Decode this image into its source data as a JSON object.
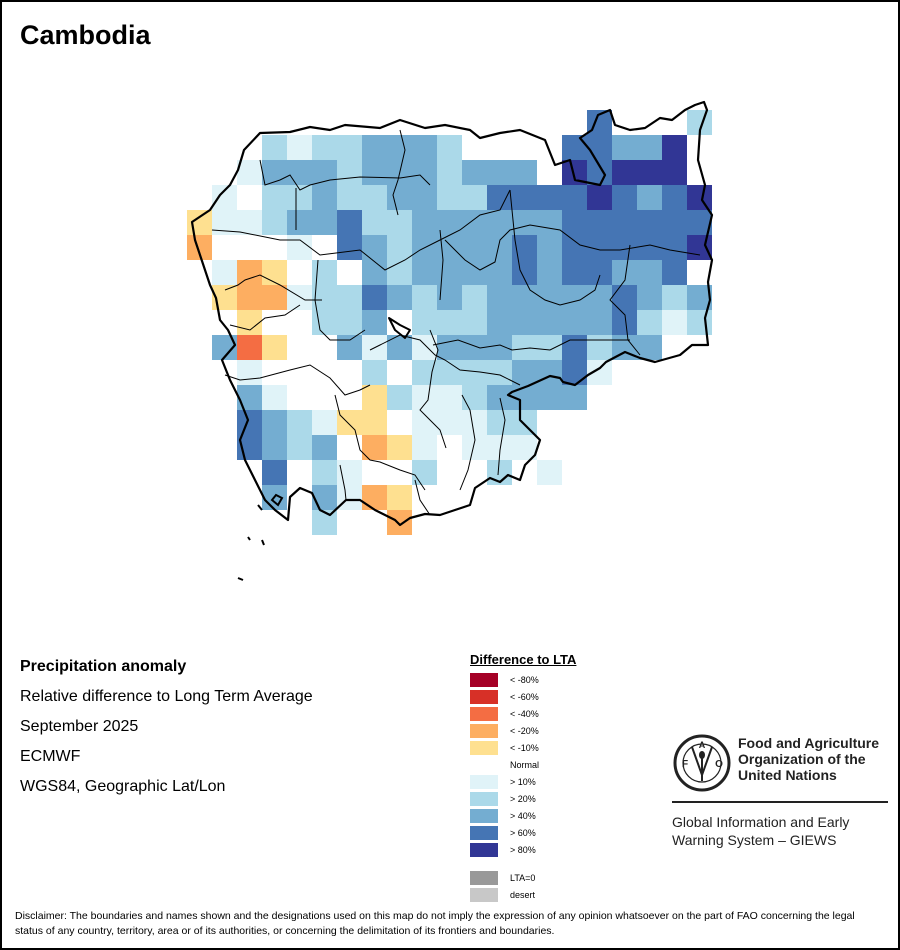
{
  "title": "Cambodia",
  "info": {
    "heading": "Precipitation anomaly",
    "line1": "Relative difference to Long Term Average",
    "line2": "September 2025",
    "line3": "ECMWF",
    "line4": "WGS84, Geographic Lat/Lon"
  },
  "legend": {
    "title": "Difference to LTA",
    "items": [
      {
        "code": "m80",
        "label": "< -80%",
        "color": "#a50026"
      },
      {
        "code": "m60",
        "label": "< -60%",
        "color": "#d73027"
      },
      {
        "code": "m40",
        "label": "< -40%",
        "color": "#f46d43"
      },
      {
        "code": "m20",
        "label": "< -20%",
        "color": "#fdae61"
      },
      {
        "code": "m10",
        "label": "< -10%",
        "color": "#fee090"
      },
      {
        "code": "W",
        "label": "Normal",
        "color": "#ffffff"
      },
      {
        "code": "p10",
        "label": "> 10%",
        "color": "#e0f3f8"
      },
      {
        "code": "p20",
        "label": "> 20%",
        "color": "#abd9e9"
      },
      {
        "code": "p40",
        "label": "> 40%",
        "color": "#74add1"
      },
      {
        "code": "p60",
        "label": "> 60%",
        "color": "#4575b4"
      },
      {
        "code": "p80",
        "label": "> 80%",
        "color": "#313695"
      }
    ],
    "extra": [
      {
        "code": "lta0",
        "label": "LTA=0",
        "color": "#999999"
      },
      {
        "code": "desert",
        "label": "desert",
        "color": "#c8c8c8"
      }
    ]
  },
  "logo": {
    "letters": "FAO",
    "motto": "FIAT PANIS",
    "org_line1": "Food and Agriculture",
    "org_line2": "Organization of the",
    "org_line3": "United Nations",
    "giews_line1": "Global Information and Early",
    "giews_line2": "Warning System – GIEWS"
  },
  "disclaimer": "Disclaimer: The boundaries and names shown and the designations used on this map do not imply the expression of any opinion whatsoever on the part of FAO concerning the legal status of any country, territory, area or of its authorities, or concerning the delimitation of its frontiers and boundaries.",
  "grid": [
    [
      "",
      "",
      "",
      "",
      "",
      "",
      "",
      "",
      "",
      "",
      "",
      "",
      "",
      "",
      "",
      "",
      "p60",
      "",
      "",
      "",
      "p20"
    ],
    [
      "",
      "",
      "",
      "p20",
      "p10",
      "p20",
      "p20",
      "p40",
      "p40",
      "p40",
      "p20",
      "",
      "",
      "",
      "",
      "p60",
      "p60",
      "p40",
      "p40",
      "p80",
      ""
    ],
    [
      "",
      "",
      "p10",
      "p40",
      "p40",
      "p40",
      "p20",
      "p40",
      "p40",
      "p40",
      "p20",
      "p40",
      "p40",
      "p40",
      "",
      "p80",
      "p60",
      "p80",
      "p80",
      "p80",
      ""
    ],
    [
      "",
      "p10",
      "W",
      "p20",
      "p20",
      "p40",
      "p20",
      "p20",
      "p40",
      "p40",
      "p20",
      "p20",
      "p60",
      "p60",
      "p60",
      "p60",
      "p80",
      "p60",
      "p40",
      "p60",
      "p80"
    ],
    [
      "m10",
      "p10",
      "p10",
      "p20",
      "p40",
      "p40",
      "p60",
      "p20",
      "p20",
      "p40",
      "p40",
      "p40",
      "p40",
      "p40",
      "p40",
      "p60",
      "p60",
      "p60",
      "p60",
      "p60",
      "p60"
    ],
    [
      "m20",
      "W",
      "W",
      "W",
      "p10",
      "W",
      "p60",
      "p40",
      "p20",
      "p40",
      "p40",
      "p40",
      "p40",
      "p60",
      "p40",
      "p60",
      "p60",
      "p60",
      "p60",
      "p60",
      "p80"
    ],
    [
      "W",
      "p10",
      "m20",
      "m10",
      "W",
      "p20",
      "W",
      "p40",
      "p20",
      "p40",
      "p40",
      "p40",
      "p40",
      "p60",
      "p40",
      "p60",
      "p60",
      "p40",
      "p40",
      "p60",
      ""
    ],
    [
      "",
      "m10",
      "m20",
      "m20",
      "p10",
      "p20",
      "p20",
      "p60",
      "p40",
      "p20",
      "p40",
      "p20",
      "p40",
      "p40",
      "p40",
      "p40",
      "p40",
      "p60",
      "p40",
      "p20",
      "p40"
    ],
    [
      "",
      "W",
      "m10",
      "W",
      "W",
      "p20",
      "p20",
      "p40",
      "W",
      "p20",
      "p20",
      "p20",
      "p40",
      "p40",
      "p40",
      "p40",
      "p40",
      "p60",
      "p20",
      "p10",
      "p20"
    ],
    [
      "",
      "p40",
      "m40",
      "m10",
      "W",
      "W",
      "p40",
      "p10",
      "p40",
      "p10",
      "p40",
      "p40",
      "p40",
      "p20",
      "p20",
      "p60",
      "p20",
      "p40",
      "p40",
      "",
      ""
    ],
    [
      "",
      "",
      "p10",
      "W",
      "W",
      "W",
      "W",
      "p20",
      "W",
      "p20",
      "p20",
      "p20",
      "p20",
      "p40",
      "p40",
      "p60",
      "p10",
      "",
      "",
      "",
      ""
    ],
    [
      "",
      "",
      "p40",
      "p10",
      "W",
      "W",
      "W",
      "m10",
      "p20",
      "p10",
      "p10",
      "p20",
      "p40",
      "p40",
      "p40",
      "p40",
      "",
      "",
      "",
      "",
      ""
    ],
    [
      "",
      "",
      "p60",
      "p40",
      "p20",
      "p10",
      "m10",
      "m10",
      "W",
      "p10",
      "p10",
      "p10",
      "p20",
      "p20",
      "W",
      "",
      "",
      "",
      "",
      "",
      ""
    ],
    [
      "",
      "",
      "p60",
      "p40",
      "p20",
      "p40",
      "W",
      "m20",
      "m10",
      "p10",
      "W",
      "p10",
      "p10",
      "p10",
      "W",
      "",
      "",
      "",
      "",
      "",
      ""
    ],
    [
      "",
      "",
      "",
      "p60",
      "W",
      "p20",
      "p10",
      "W",
      "W",
      "p20",
      "W",
      "W",
      "p20",
      "W",
      "p10",
      "",
      "",
      "",
      "",
      "",
      ""
    ],
    [
      "",
      "",
      "",
      "p40",
      "",
      "p40",
      "p10",
      "m20",
      "m10",
      "",
      "",
      "",
      "",
      "",
      "",
      "",
      "",
      "",
      "",
      "",
      ""
    ],
    [
      "",
      "",
      "",
      "",
      "",
      "p20",
      "",
      "",
      "m20",
      "",
      "",
      "",
      "",
      "",
      "",
      "",
      "",
      "",
      "",
      "",
      ""
    ]
  ]
}
